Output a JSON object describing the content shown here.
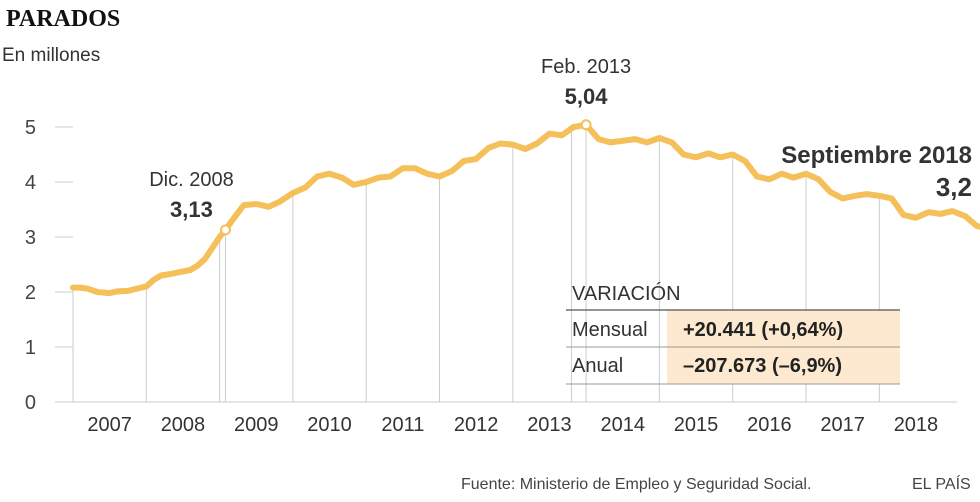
{
  "chart_data": {
    "type": "line",
    "title": "PARADOS",
    "subtitle": "En millones",
    "ylim": [
      0,
      5
    ],
    "yticks": [
      0,
      1,
      2,
      3,
      4,
      5
    ],
    "xlim": [
      2006.0,
      2018.75
    ],
    "x_ticks": [
      "2007",
      "2008",
      "2009",
      "2010",
      "2011",
      "2012",
      "2013",
      "2014",
      "2015",
      "2016",
      "2017",
      "2018"
    ],
    "series": [
      {
        "name": "Parados",
        "color": "#f5bf5a",
        "points": [
          [
            2006.0,
            2.08
          ],
          [
            2006.1,
            2.08
          ],
          [
            2006.2,
            2.06
          ],
          [
            2006.33,
            2.0
          ],
          [
            2006.5,
            1.98
          ],
          [
            2006.6,
            2.01
          ],
          [
            2006.75,
            2.02
          ],
          [
            2006.9,
            2.07
          ],
          [
            2007.0,
            2.1
          ],
          [
            2007.1,
            2.22
          ],
          [
            2007.2,
            2.3
          ],
          [
            2007.3,
            2.32
          ],
          [
            2007.45,
            2.36
          ],
          [
            2007.6,
            2.4
          ],
          [
            2007.7,
            2.48
          ],
          [
            2007.8,
            2.6
          ],
          [
            2007.9,
            2.8
          ],
          [
            2008.0,
            3.0
          ],
          [
            2008.08,
            3.13
          ],
          [
            2008.17,
            3.3
          ],
          [
            2008.33,
            3.58
          ],
          [
            2008.5,
            3.6
          ],
          [
            2008.67,
            3.55
          ],
          [
            2008.83,
            3.65
          ],
          [
            2009.0,
            3.8
          ],
          [
            2009.17,
            3.9
          ],
          [
            2009.33,
            4.1
          ],
          [
            2009.5,
            4.15
          ],
          [
            2009.67,
            4.08
          ],
          [
            2009.83,
            3.95
          ],
          [
            2010.0,
            4.0
          ],
          [
            2010.17,
            4.08
          ],
          [
            2010.33,
            4.1
          ],
          [
            2010.5,
            4.25
          ],
          [
            2010.67,
            4.25
          ],
          [
            2010.83,
            4.15
          ],
          [
            2011.0,
            4.1
          ],
          [
            2011.17,
            4.2
          ],
          [
            2011.33,
            4.38
          ],
          [
            2011.5,
            4.42
          ],
          [
            2011.67,
            4.62
          ],
          [
            2011.83,
            4.7
          ],
          [
            2012.0,
            4.68
          ],
          [
            2012.17,
            4.6
          ],
          [
            2012.33,
            4.7
          ],
          [
            2012.5,
            4.88
          ],
          [
            2012.67,
            4.85
          ],
          [
            2012.83,
            5.0
          ],
          [
            2013.0,
            5.04
          ],
          [
            2013.17,
            4.78
          ],
          [
            2013.33,
            4.72
          ],
          [
            2013.5,
            4.75
          ],
          [
            2013.67,
            4.78
          ],
          [
            2013.83,
            4.72
          ],
          [
            2014.0,
            4.8
          ],
          [
            2014.17,
            4.72
          ],
          [
            2014.33,
            4.5
          ],
          [
            2014.5,
            4.45
          ],
          [
            2014.67,
            4.52
          ],
          [
            2014.83,
            4.45
          ],
          [
            2015.0,
            4.5
          ],
          [
            2015.17,
            4.38
          ],
          [
            2015.33,
            4.1
          ],
          [
            2015.5,
            4.05
          ],
          [
            2015.67,
            4.15
          ],
          [
            2015.83,
            4.08
          ],
          [
            2016.0,
            4.15
          ],
          [
            2016.17,
            4.05
          ],
          [
            2016.33,
            3.82
          ],
          [
            2016.5,
            3.7
          ],
          [
            2016.67,
            3.75
          ],
          [
            2016.83,
            3.78
          ],
          [
            2017.0,
            3.75
          ],
          [
            2017.17,
            3.7
          ],
          [
            2017.33,
            3.4
          ],
          [
            2017.5,
            3.35
          ],
          [
            2017.67,
            3.45
          ],
          [
            2017.83,
            3.42
          ],
          [
            2018.0,
            3.47
          ],
          [
            2018.17,
            3.38
          ],
          [
            2018.33,
            3.2
          ],
          [
            2018.5,
            3.15
          ],
          [
            2018.67,
            3.2
          ]
        ]
      }
    ],
    "annotations": [
      {
        "label": "Dic. 2008",
        "value": "3,13",
        "x": 2008.08,
        "y": 3.13,
        "style": "normal"
      },
      {
        "label": "Feb. 2013",
        "value": "5,04",
        "x": 2013.0,
        "y": 5.04,
        "style": "normal"
      },
      {
        "label": "Septiembre 2018",
        "value": "3,2",
        "x": 2018.67,
        "y": 3.2,
        "style": "big"
      }
    ],
    "table": {
      "header": "VARIACIÓN",
      "rows": [
        {
          "label": "Mensual",
          "value": "+20.441 (+0,64%)"
        },
        {
          "label": "Anual",
          "value": "–207.673 (–6,9%)"
        }
      ]
    },
    "source": "Fuente: Ministerio de Empleo y Seguridad Social.",
    "brand": "EL PAÍS"
  }
}
